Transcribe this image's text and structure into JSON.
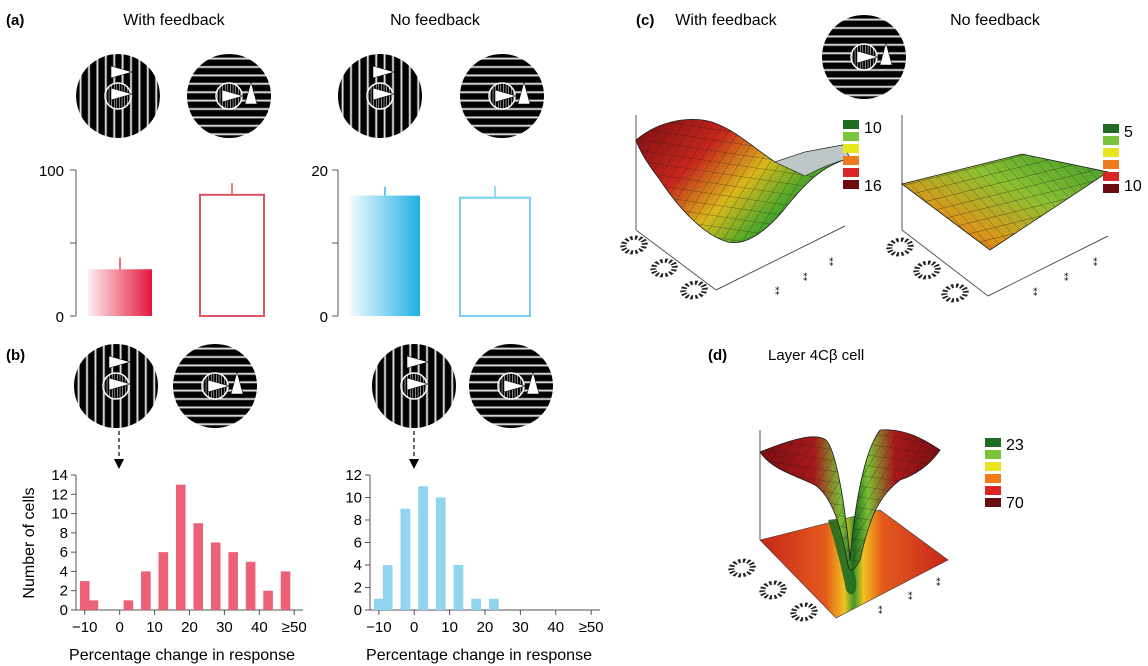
{
  "panels": {
    "a": {
      "label": "(a)",
      "titles": [
        "With feedback",
        "No feedback"
      ]
    },
    "b": {
      "label": "(b)"
    },
    "c": {
      "label": "(c)",
      "titles": [
        "With feedback",
        "No feedback"
      ],
      "colorbar_left": [
        "10",
        "16"
      ],
      "colorbar_right": [
        "5",
        "10"
      ]
    },
    "d": {
      "label": "(d)",
      "title": "Layer 4Cβ cell",
      "colorbar": [
        "23",
        "70"
      ]
    }
  },
  "colors": {
    "red": "#e83a55",
    "red_light": "#fbe0e5",
    "blue": "#36b8e6",
    "blue_light": "#e4f6fd",
    "red_outline": "#d95566",
    "blue_outline": "#79cfee"
  },
  "chart_data": [
    {
      "id": "a-left",
      "type": "bar",
      "categories": [
        "With feedback",
        "No feedback"
      ],
      "values": [
        32,
        83
      ],
      "errors": [
        8,
        8
      ],
      "ylim": [
        0,
        100
      ],
      "ytick_labels": [
        "0",
        "100"
      ],
      "fill": [
        "gradient-red",
        "outline-red"
      ]
    },
    {
      "id": "a-right",
      "type": "bar",
      "categories": [
        "With feedback",
        "No feedback"
      ],
      "values": [
        16.5,
        16.2
      ],
      "errors": [
        1.2,
        1.6
      ],
      "ylim": [
        0,
        20
      ],
      "ytick_labels": [
        "0",
        "20"
      ],
      "fill": [
        "gradient-blue",
        "outline-blue"
      ]
    },
    {
      "id": "b-left",
      "type": "bar",
      "xlabel": "Percentage change in response",
      "ylabel": "Number of cells",
      "x": [
        -10,
        -7.5,
        -2.5,
        2.5,
        7.5,
        12.5,
        17.5,
        22.5,
        27.5,
        32.5,
        37.5,
        42.5,
        47.5,
        52.5
      ],
      "values": [
        3,
        1,
        0,
        1,
        4,
        6,
        13,
        9,
        7,
        6,
        5,
        2,
        4,
        0
      ],
      "xlim": [
        -12.5,
        52.5
      ],
      "ylim": [
        0,
        14
      ],
      "xtick_values": [
        -10,
        0,
        10,
        20,
        30,
        40,
        50
      ],
      "xtick_labels": [
        "−10",
        "0",
        "10",
        "20",
        "30",
        "40",
        "≥50"
      ],
      "ytick_labels": [
        "0",
        "2",
        "4",
        "6",
        "8",
        "10",
        "12",
        "14"
      ],
      "arrow_at": 0
    },
    {
      "id": "b-right",
      "type": "bar",
      "xlabel": "Percentage change in response",
      "ylabel": "",
      "x": [
        -10,
        -7.5,
        -2.5,
        2.5,
        7.5,
        12.5,
        17.5,
        22.5,
        27.5
      ],
      "values": [
        1,
        4,
        9,
        11,
        10,
        4,
        1,
        1,
        0
      ],
      "xlim": [
        -12.5,
        52.5
      ],
      "ylim": [
        0,
        12
      ],
      "xtick_values": [
        -10,
        0,
        10,
        20,
        30,
        40,
        50
      ],
      "xtick_labels": [
        "−10",
        "0",
        "10",
        "20",
        "30",
        "40",
        "≥50"
      ],
      "ytick_labels": [
        "0",
        "2",
        "4",
        "6",
        "8",
        "10",
        "12"
      ],
      "arrow_at": 0
    }
  ]
}
